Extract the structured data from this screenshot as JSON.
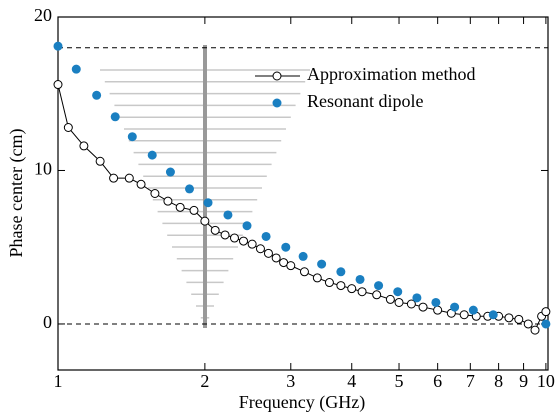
{
  "chart_data": {
    "type": "line",
    "x_label": "Frequency (GHz)",
    "y_label": "Phase center (cm)",
    "log_x": true,
    "xlim": [
      1,
      10.1
    ],
    "ylim": [
      -3,
      20
    ],
    "xticks": [
      1,
      2,
      3,
      4,
      5,
      6,
      7,
      8,
      9,
      10
    ],
    "yticks": [
      0,
      10,
      20
    ],
    "reference_lines": [
      18,
      0
    ],
    "legend": "top-right",
    "series": [
      {
        "name": "Approximation method",
        "color": "#000000",
        "line": true,
        "marker": "open-circle",
        "x": [
          1,
          1.05,
          1.13,
          1.22,
          1.3,
          1.4,
          1.48,
          1.58,
          1.68,
          1.78,
          1.9,
          2.0,
          2.1,
          2.2,
          2.3,
          2.4,
          2.5,
          2.6,
          2.7,
          2.8,
          2.9,
          3.0,
          3.2,
          3.4,
          3.6,
          3.8,
          4.0,
          4.2,
          4.5,
          4.8,
          5.0,
          5.3,
          5.6,
          6.0,
          6.4,
          6.8,
          7.2,
          7.6,
          8.0,
          8.4,
          8.8,
          9.2,
          9.5,
          9.8,
          10
        ],
        "values": [
          15.6,
          12.8,
          11.6,
          10.6,
          9.5,
          9.5,
          9.1,
          8.5,
          8.0,
          7.6,
          7.4,
          6.7,
          6.1,
          5.8,
          5.6,
          5.4,
          5.2,
          4.9,
          4.6,
          4.3,
          4.0,
          3.8,
          3.4,
          3.0,
          2.7,
          2.5,
          2.3,
          2.1,
          1.9,
          1.6,
          1.4,
          1.3,
          1.1,
          0.9,
          0.7,
          0.6,
          0.5,
          0.5,
          0.5,
          0.4,
          0.3,
          0.0,
          -0.4,
          0.5,
          0.8
        ]
      },
      {
        "name": "Resonant dipole",
        "color": "#1a7fc1",
        "line": false,
        "marker": "filled-circle",
        "x": [
          1,
          1.09,
          1.2,
          1.31,
          1.42,
          1.56,
          1.7,
          1.86,
          2.03,
          2.23,
          2.44,
          2.67,
          2.93,
          3.18,
          3.47,
          3.8,
          4.16,
          4.54,
          4.97,
          5.44,
          5.95,
          6.5,
          7.1,
          7.8,
          10
        ],
        "values": [
          18.1,
          16.6,
          14.9,
          13.5,
          12.2,
          11.0,
          9.9,
          8.8,
          7.9,
          7.1,
          6.4,
          5.7,
          5.0,
          4.4,
          3.9,
          3.4,
          2.9,
          2.5,
          2.1,
          1.7,
          1.4,
          1.1,
          0.9,
          0.6,
          0.0
        ]
      }
    ]
  }
}
